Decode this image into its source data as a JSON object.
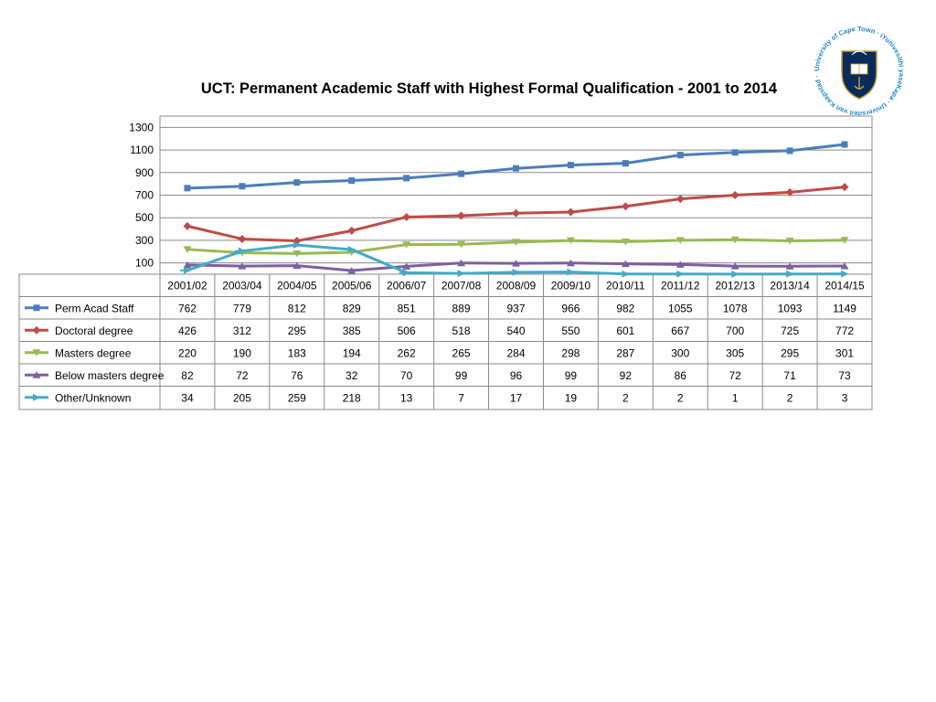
{
  "title": "UCT: Permanent Academic Staff with Highest Formal Qualification - 2001 to 2014",
  "logo": {
    "name": "University of Cape Town seal",
    "ring_text": "University of Cape Town · iYunivesithi yaseKapa · Universiteit van Kaapstad ·",
    "ribbon_text": "SPES BONA",
    "colors": {
      "ring": "#1e88c8",
      "shield": "#0a2a5c",
      "gold": "#c8a23c"
    }
  },
  "chart_data": {
    "type": "line",
    "title": "UCT: Permanent Academic Staff with Highest Formal Qualification - 2001 to 2014",
    "categories": [
      "2001/02",
      "2003/04",
      "2004/05",
      "2005/06",
      "2006/07",
      "2007/08",
      "2008/09",
      "2009/10",
      "2010/11",
      "2011/12",
      "2012/13",
      "2013/14",
      "2014/15"
    ],
    "yticks": [
      100,
      300,
      500,
      700,
      900,
      1100,
      1300
    ],
    "ylim": [
      0,
      1400
    ],
    "grid": true,
    "legend": "data-table",
    "series": [
      {
        "name": "Perm Acad Staff",
        "color": "#4a7ebb",
        "marker": "square",
        "values": [
          762,
          779,
          812,
          829,
          851,
          889,
          937,
          966,
          982,
          1055,
          1078,
          1093,
          1149
        ]
      },
      {
        "name": "Doctoral degree",
        "color": "#be4b48",
        "marker": "diamond",
        "values": [
          426,
          312,
          295,
          385,
          506,
          518,
          540,
          550,
          601,
          667,
          700,
          725,
          772
        ]
      },
      {
        "name": "Masters degree",
        "color": "#98b954",
        "marker": "triangle-down",
        "values": [
          220,
          190,
          183,
          194,
          262,
          265,
          284,
          298,
          287,
          300,
          305,
          295,
          301
        ]
      },
      {
        "name": "Below masters degree",
        "color": "#7d60a0",
        "marker": "triangle-up",
        "values": [
          82,
          72,
          76,
          32,
          70,
          99,
          96,
          99,
          92,
          86,
          72,
          71,
          73
        ]
      },
      {
        "name": "Other/Unknown",
        "color": "#46aac5",
        "marker": "arrow",
        "values": [
          34,
          205,
          259,
          218,
          13,
          7,
          17,
          19,
          2,
          2,
          1,
          2,
          3
        ]
      }
    ]
  }
}
